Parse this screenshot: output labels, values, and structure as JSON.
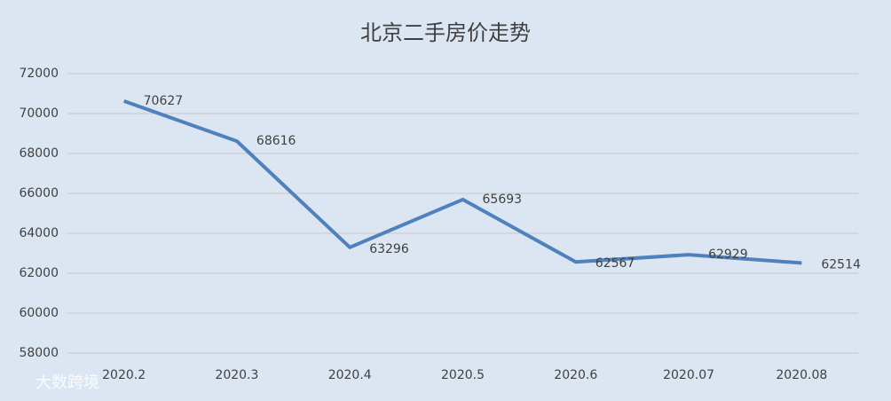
{
  "chart_data": {
    "type": "line",
    "title": "北京二手房价走势",
    "categories": [
      "2020.2",
      "2020.3",
      "2020.4",
      "2020.5",
      "2020.6",
      "2020.07",
      "2020.08"
    ],
    "values": [
      70627,
      68616,
      63296,
      65693,
      62567,
      62929,
      62514
    ],
    "color": "#4f81bd",
    "ylim": [
      58000,
      72000
    ],
    "yticks": [
      58000,
      60000,
      62000,
      64000,
      66000,
      68000,
      70000,
      72000
    ],
    "grid": true,
    "data_labels": true
  },
  "watermark": "大数跨境"
}
